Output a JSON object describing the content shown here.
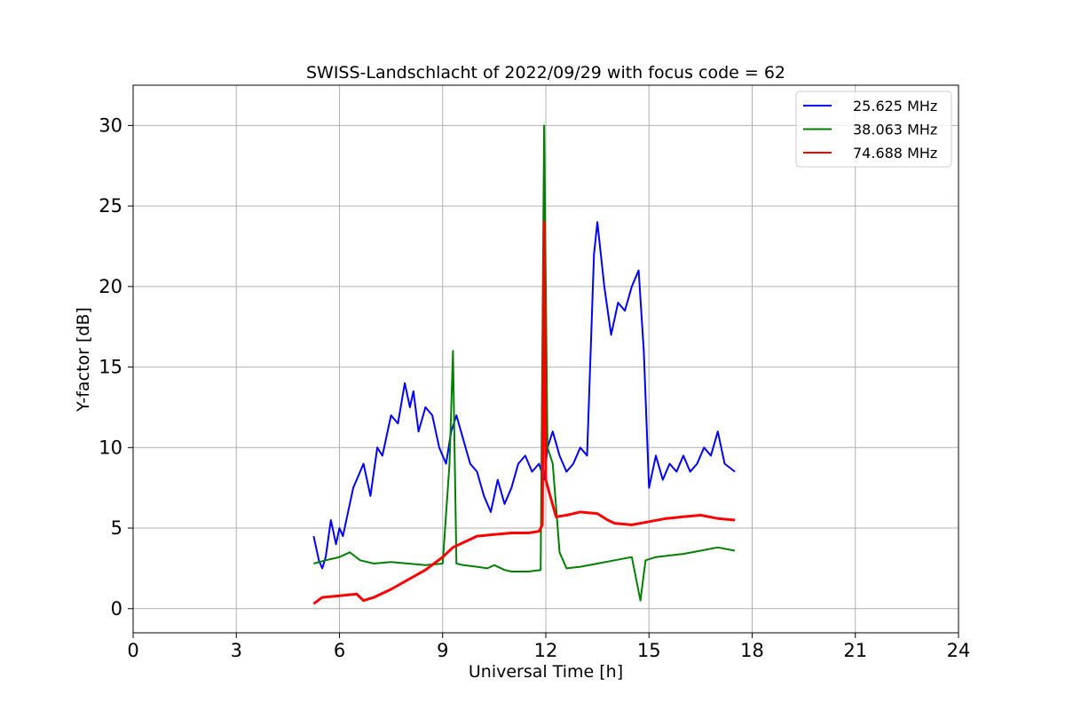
{
  "chart_data": {
    "type": "line",
    "title": "SWISS-Landschlacht of 2022/09/29 with focus code = 62",
    "xlabel": "Universal Time [h]",
    "ylabel": "Y-factor [dB]",
    "xlim": [
      0,
      24
    ],
    "ylim": [
      -1.5,
      32.5
    ],
    "xticks": [
      0,
      3,
      6,
      9,
      12,
      15,
      18,
      21,
      24
    ],
    "yticks": [
      0,
      5,
      10,
      15,
      20,
      25,
      30
    ],
    "grid": true,
    "legend_position": "top-right",
    "series": [
      {
        "name": "25.625 MHz",
        "color": "#0000ff",
        "x": [
          5.25,
          5.4,
          5.5,
          5.6,
          5.75,
          5.9,
          6.0,
          6.1,
          6.25,
          6.4,
          6.5,
          6.7,
          6.9,
          7.1,
          7.25,
          7.5,
          7.7,
          7.9,
          8.05,
          8.15,
          8.3,
          8.5,
          8.7,
          8.9,
          9.1,
          9.25,
          9.4,
          9.6,
          9.8,
          10.0,
          10.2,
          10.4,
          10.6,
          10.8,
          11.0,
          11.2,
          11.4,
          11.6,
          11.8,
          11.95,
          12.05,
          12.2,
          12.4,
          12.6,
          12.8,
          13.0,
          13.2,
          13.4,
          13.5,
          13.7,
          13.9,
          14.1,
          14.3,
          14.5,
          14.7,
          14.85,
          15.0,
          15.2,
          15.4,
          15.6,
          15.8,
          16.0,
          16.2,
          16.4,
          16.6,
          16.8,
          17.0,
          17.2,
          17.5
        ],
        "values": [
          4.5,
          3.0,
          2.5,
          3.2,
          5.5,
          4.0,
          5.0,
          4.5,
          6.0,
          7.5,
          8.0,
          9.0,
          7.0,
          10.0,
          9.5,
          12.0,
          11.5,
          14.0,
          12.5,
          13.5,
          11.0,
          12.5,
          12.0,
          10.0,
          9.0,
          11.0,
          12.0,
          10.5,
          9.0,
          8.5,
          7.0,
          6.0,
          8.0,
          6.5,
          7.5,
          9.0,
          9.5,
          8.5,
          9.0,
          8.0,
          10.0,
          11.0,
          9.5,
          8.5,
          9.0,
          10.0,
          9.5,
          22.0,
          24.0,
          20.0,
          17.0,
          19.0,
          18.5,
          20.0,
          21.0,
          16.0,
          7.5,
          9.5,
          8.0,
          9.0,
          8.5,
          9.5,
          8.5,
          9.0,
          10.0,
          9.5,
          11.0,
          9.0,
          8.5
        ]
      },
      {
        "name": "38.063 MHz",
        "color": "#008000",
        "x": [
          5.25,
          5.6,
          6.0,
          6.3,
          6.6,
          7.0,
          7.5,
          8.0,
          8.5,
          9.0,
          9.2,
          9.3,
          9.4,
          9.6,
          10.0,
          10.3,
          10.5,
          10.8,
          11.0,
          11.5,
          11.85,
          11.95,
          12.05,
          12.2,
          12.4,
          12.6,
          13.0,
          13.5,
          14.0,
          14.5,
          14.75,
          14.9,
          15.2,
          15.6,
          16.0,
          16.5,
          17.0,
          17.5
        ],
        "values": [
          2.8,
          3.0,
          3.2,
          3.5,
          3.0,
          2.8,
          2.9,
          2.8,
          2.7,
          2.8,
          9.0,
          16.0,
          2.8,
          2.7,
          2.6,
          2.5,
          2.7,
          2.4,
          2.3,
          2.3,
          2.4,
          30.0,
          10.0,
          9.0,
          3.5,
          2.5,
          2.6,
          2.8,
          3.0,
          3.2,
          0.5,
          3.0,
          3.2,
          3.3,
          3.4,
          3.6,
          3.8,
          3.6
        ]
      },
      {
        "name": "74.688 MHz",
        "color": "#ff0000",
        "x": [
          5.25,
          5.5,
          6.0,
          6.5,
          6.7,
          7.0,
          7.5,
          8.0,
          8.5,
          9.0,
          9.3,
          9.6,
          10.0,
          10.5,
          11.0,
          11.5,
          11.8,
          11.9,
          11.95,
          12.0,
          12.1,
          12.3,
          12.6,
          13.0,
          13.5,
          13.8,
          14.0,
          14.5,
          15.0,
          15.5,
          16.0,
          16.5,
          17.0,
          17.5
        ],
        "values": [
          0.3,
          0.7,
          0.8,
          0.9,
          0.5,
          0.7,
          1.2,
          1.8,
          2.4,
          3.2,
          3.8,
          4.1,
          4.5,
          4.6,
          4.7,
          4.7,
          4.8,
          5.2,
          24.0,
          8.0,
          7.2,
          5.7,
          5.8,
          6.0,
          5.9,
          5.5,
          5.3,
          5.2,
          5.4,
          5.6,
          5.7,
          5.8,
          5.6,
          5.5
        ]
      }
    ]
  }
}
